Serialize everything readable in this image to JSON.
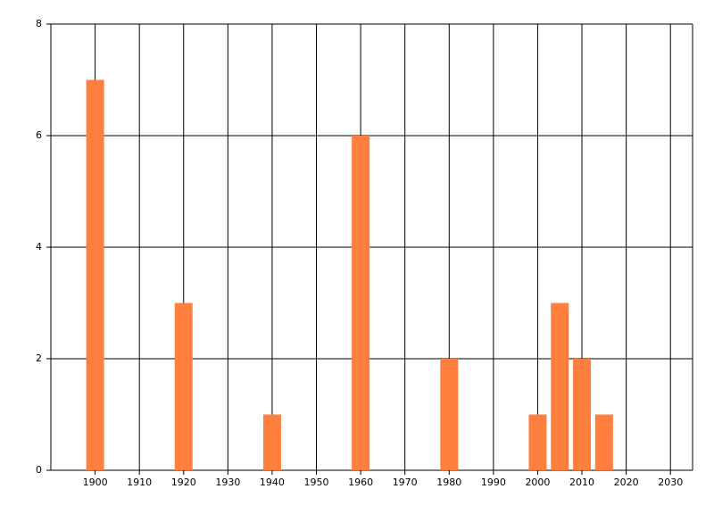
{
  "chart_data": {
    "type": "bar",
    "x": [
      1900,
      1920,
      1940,
      1960,
      1980,
      2000,
      2005,
      2010,
      2015
    ],
    "values": [
      7,
      3,
      1,
      6,
      2,
      1,
      3,
      2,
      1
    ],
    "color": "#ff7f3f",
    "xlim": [
      1890,
      2035
    ],
    "xticks": [
      1900,
      1910,
      1920,
      1930,
      1940,
      1950,
      1960,
      1970,
      1980,
      1990,
      2000,
      2010,
      2020,
      2030
    ],
    "ylim": [
      0,
      8
    ],
    "yticks": [
      0,
      2,
      4,
      6,
      8
    ],
    "grid": true
  }
}
